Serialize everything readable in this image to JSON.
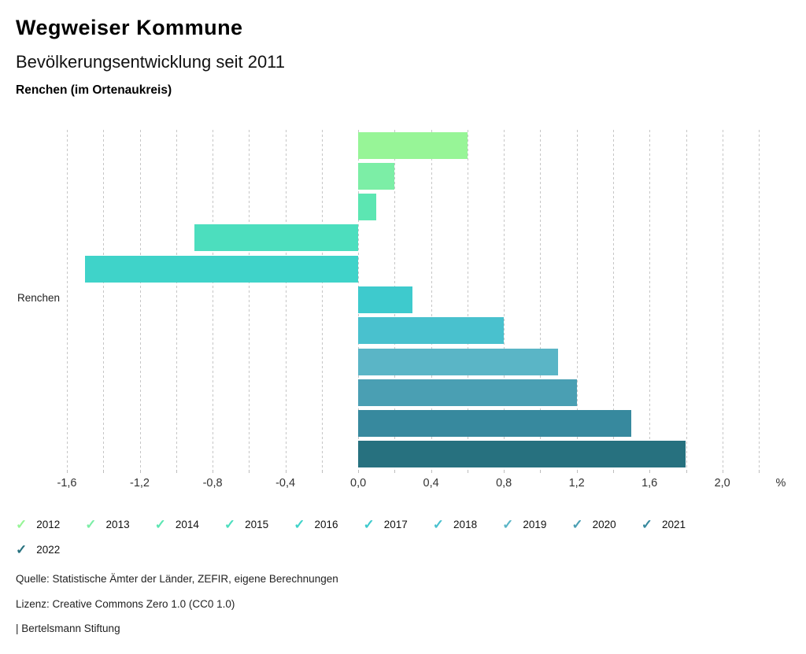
{
  "header": {
    "title": "Wegweiser Kommune",
    "subtitle": "Bevölkerungsentwicklung seit 2011",
    "region": "Renchen (im Ortenaukreis)"
  },
  "chart_data": {
    "type": "bar",
    "orientation": "horizontal",
    "group_label": "Renchen",
    "title": "Bevölkerungsentwicklung seit 2011",
    "unit": "%",
    "series": [
      {
        "name": "2012",
        "value": 0.6,
        "color": "#97f597"
      },
      {
        "name": "2013",
        "value": 0.2,
        "color": "#7ceea6"
      },
      {
        "name": "2014",
        "value": 0.1,
        "color": "#5ce6b2"
      },
      {
        "name": "2015",
        "value": -0.9,
        "color": "#4cdebe"
      },
      {
        "name": "2016",
        "value": -1.5,
        "color": "#3fd3c9"
      },
      {
        "name": "2017",
        "value": 0.3,
        "color": "#3ecacd"
      },
      {
        "name": "2018",
        "value": 0.8,
        "color": "#49c1ce"
      },
      {
        "name": "2019",
        "value": 1.1,
        "color": "#5ab5c6"
      },
      {
        "name": "2020",
        "value": 1.2,
        "color": "#4a9fb3"
      },
      {
        "name": "2021",
        "value": 1.5,
        "color": "#37899e"
      },
      {
        "name": "2022",
        "value": 1.8,
        "color": "#27717f"
      }
    ],
    "xlim": [
      -1.6,
      2.2
    ],
    "grid": "vertical-dotted",
    "gridline_step": 0.2,
    "x_tick_labels": [
      "-1,6",
      "-1,2",
      "-0,8",
      "-0,4",
      "0,0",
      "0,4",
      "0,8",
      "1,2",
      "1,6",
      "2,0"
    ],
    "x_tick_values": [
      -1.6,
      -1.2,
      -0.8,
      -0.4,
      0.0,
      0.4,
      0.8,
      1.2,
      1.6,
      2.0
    ],
    "x_axis_suffix": "%",
    "legend_position": "bottom",
    "legend_check_glyph": "✓"
  },
  "footer": {
    "source": "Quelle: Statistische Ämter der Länder, ZEFIR, eigene Berechnungen",
    "license": "Lizenz: Creative Commons Zero 1.0 (CC0 1.0)",
    "attribution": "| Bertelsmann Stiftung"
  }
}
